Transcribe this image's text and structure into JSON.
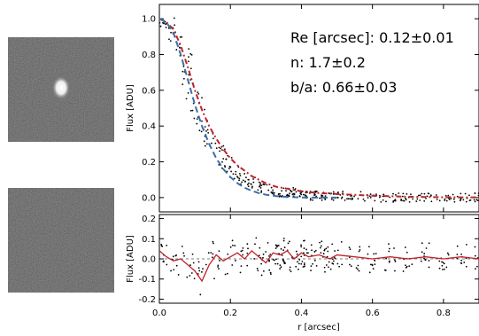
{
  "images": [
    {
      "content": "galaxy cutout with a bright compact source"
    },
    {
      "content": "residual cutout showing noise"
    }
  ],
  "chart_data": [
    {
      "type": "scatter",
      "panel": "profile",
      "xlabel": "",
      "ylabel": "Flux [ADU]",
      "xlim": [
        0,
        0.9
      ],
      "ylim": [
        -0.08,
        1.08
      ],
      "y_ticks": [
        0.0,
        0.2,
        0.4,
        0.6,
        0.8,
        1.0
      ],
      "y_tick_labels": [
        "0.0",
        "0.2",
        "0.4",
        "0.6",
        "0.8",
        "1.0"
      ],
      "grid": false,
      "annotations": [
        "Re [arcsec]: 0.12±0.01",
        "n: 1.7±0.2",
        "b/a: 0.66±0.03"
      ],
      "series": [
        {
          "style": "points",
          "color": "#000000",
          "x": [
            0.0,
            0.01,
            0.02,
            0.03,
            0.04,
            0.05,
            0.06,
            0.07,
            0.08,
            0.09,
            0.1,
            0.11,
            0.12,
            0.13,
            0.14,
            0.15,
            0.16,
            0.17,
            0.18,
            0.19,
            0.2,
            0.21,
            0.22,
            0.23,
            0.24,
            0.25,
            0.26,
            0.27,
            0.28,
            0.29,
            0.3,
            0.32,
            0.34,
            0.36,
            0.38,
            0.4,
            0.42,
            0.45,
            0.48,
            0.5,
            0.55,
            0.6,
            0.65,
            0.7,
            0.75,
            0.8,
            0.85,
            0.9
          ],
          "y": [
            1.0,
            0.99,
            0.98,
            0.96,
            0.93,
            0.89,
            0.84,
            0.78,
            0.71,
            0.64,
            0.57,
            0.51,
            0.45,
            0.4,
            0.35,
            0.31,
            0.28,
            0.25,
            0.22,
            0.19,
            0.17,
            0.15,
            0.13,
            0.12,
            0.1,
            0.09,
            0.08,
            0.07,
            0.06,
            0.05,
            0.05,
            0.04,
            0.03,
            0.03,
            0.02,
            0.02,
            0.02,
            0.01,
            0.01,
            0.01,
            0.01,
            0.0,
            0.0,
            0.0,
            0.0,
            0.0,
            0.0,
            0.0
          ]
        },
        {
          "style": "dash-dot",
          "color": "#c0232b",
          "x": [
            0.0,
            0.02,
            0.04,
            0.06,
            0.08,
            0.1,
            0.12,
            0.14,
            0.16,
            0.18,
            0.2,
            0.22,
            0.24,
            0.26,
            0.28,
            0.3,
            0.33,
            0.36,
            0.4,
            0.45,
            0.5,
            0.6,
            0.7,
            0.8,
            0.9
          ],
          "y": [
            1.0,
            0.98,
            0.94,
            0.85,
            0.73,
            0.6,
            0.49,
            0.4,
            0.33,
            0.27,
            0.22,
            0.18,
            0.15,
            0.12,
            0.1,
            0.08,
            0.06,
            0.05,
            0.035,
            0.025,
            0.02,
            0.01,
            0.005,
            0.002,
            0.001
          ]
        },
        {
          "style": "dashed",
          "color": "#3a6fa8",
          "x": [
            0.0,
            0.02,
            0.04,
            0.06,
            0.08,
            0.1,
            0.12,
            0.14,
            0.16,
            0.18,
            0.2,
            0.22,
            0.24,
            0.26,
            0.28,
            0.3,
            0.33,
            0.36,
            0.4,
            0.45,
            0.5
          ],
          "y": [
            1.0,
            0.98,
            0.92,
            0.8,
            0.66,
            0.52,
            0.4,
            0.3,
            0.22,
            0.16,
            0.115,
            0.08,
            0.055,
            0.038,
            0.025,
            0.016,
            0.008,
            0.004,
            0.001,
            0.0,
            0.0
          ]
        }
      ]
    },
    {
      "type": "scatter",
      "panel": "residuals",
      "xlabel": "r [arcsec]",
      "ylabel": "Flux [ADU]",
      "xlim": [
        0,
        0.9
      ],
      "ylim": [
        -0.22,
        0.22
      ],
      "x_ticks": [
        0.0,
        0.2,
        0.4,
        0.6,
        0.8
      ],
      "x_tick_labels": [
        "0.0",
        "0.2",
        "0.4",
        "0.6",
        "0.8"
      ],
      "y_ticks": [
        -0.2,
        -0.1,
        0.0,
        0.1,
        0.2
      ],
      "y_tick_labels": [
        "-0.2",
        "-0.1",
        "0.0",
        "0.1",
        "0.2"
      ],
      "grid": false,
      "series": [
        {
          "style": "line",
          "color": "#c0232b",
          "x": [
            0.0,
            0.02,
            0.04,
            0.06,
            0.08,
            0.1,
            0.12,
            0.14,
            0.16,
            0.18,
            0.2,
            0.22,
            0.24,
            0.26,
            0.28,
            0.3,
            0.32,
            0.34,
            0.36,
            0.38,
            0.4,
            0.42,
            0.45,
            0.48,
            0.5,
            0.55,
            0.6,
            0.65,
            0.7,
            0.75,
            0.8,
            0.85,
            0.9
          ],
          "y": [
            0.04,
            0.01,
            -0.01,
            0.0,
            -0.03,
            -0.06,
            -0.11,
            -0.03,
            0.02,
            -0.01,
            0.01,
            0.03,
            0.0,
            0.04,
            0.01,
            -0.02,
            0.03,
            0.02,
            0.04,
            0.0,
            0.03,
            0.01,
            0.02,
            0.0,
            0.02,
            0.01,
            0.0,
            0.01,
            0.0,
            0.01,
            0.0,
            0.01,
            0.0
          ]
        }
      ]
    }
  ]
}
